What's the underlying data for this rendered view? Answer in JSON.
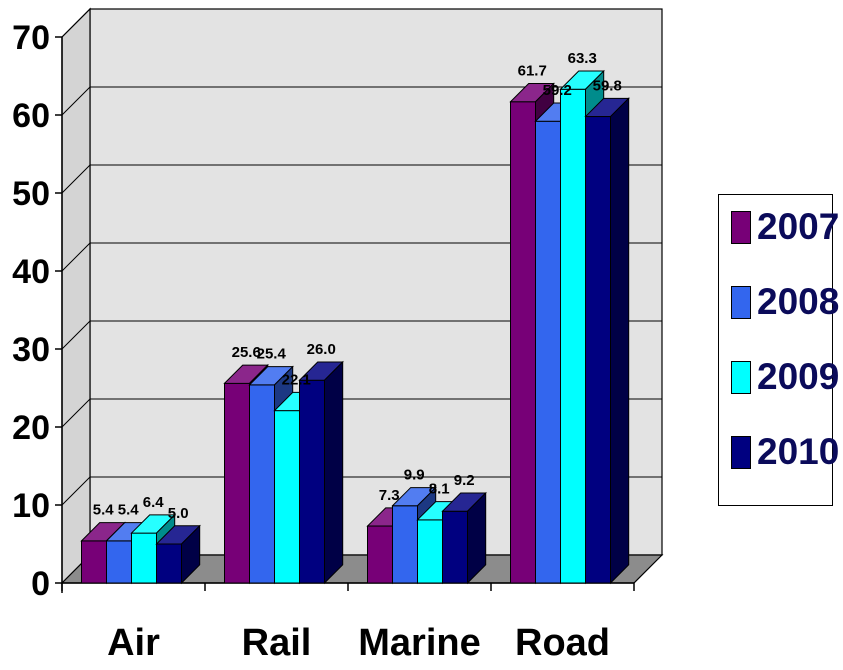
{
  "chart_data": {
    "type": "bar",
    "categories": [
      "Air",
      "Rail",
      "Marine",
      "Road"
    ],
    "series": [
      {
        "name": "2007",
        "values": [
          5.4,
          25.6,
          7.3,
          61.7
        ]
      },
      {
        "name": "2008",
        "values": [
          5.4,
          25.4,
          9.9,
          59.2
        ]
      },
      {
        "name": "2009",
        "values": [
          6.4,
          22.1,
          8.1,
          63.3
        ]
      },
      {
        "name": "2010",
        "values": [
          5.0,
          26.0,
          9.2,
          59.8
        ]
      }
    ],
    "data_labels": [
      [
        "5.4",
        "25.6",
        "7.3",
        "61.7"
      ],
      [
        "5.4",
        "25.4",
        "9.9",
        "59.2"
      ],
      [
        "6.4",
        "22.1",
        "8.1",
        "63.3"
      ],
      [
        "5.0",
        "26.0",
        "9.2",
        "59.8"
      ]
    ],
    "yticks": [
      "0",
      "10",
      "20",
      "30",
      "40",
      "50",
      "60",
      "70"
    ],
    "ylim": [
      0,
      70
    ],
    "grid": true,
    "style": "3d-clustered-column",
    "legend": "right",
    "colors": [
      "#770077",
      "#3366ee",
      "#00ffff",
      "#000080"
    ],
    "title": "",
    "xlabel": "",
    "ylabel": ""
  }
}
